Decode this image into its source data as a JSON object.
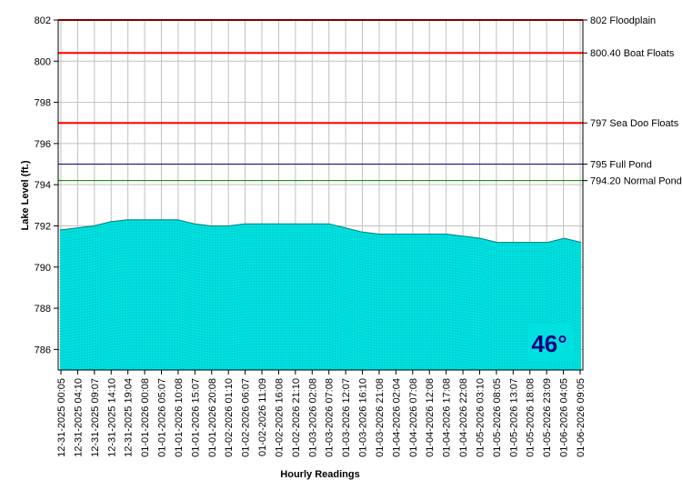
{
  "chart_data": {
    "type": "area",
    "xlabel": "Hourly Readings",
    "ylabel": "Lake Level (ft.)",
    "ylim": [
      785,
      802
    ],
    "y_ticks": [
      786,
      788,
      790,
      792,
      794,
      796,
      798,
      800,
      802
    ],
    "x_tick_labels": [
      "12-31-2025 00:05",
      "12-31-2025 04:10",
      "12-31-2025 09:07",
      "12-31-2025 14:10",
      "12-31-2025 19:04",
      "01-01-2026 00:08",
      "01-01-2026 05:07",
      "01-01-2026 10:08",
      "01-01-2026 15:07",
      "01-01-2026 20:08",
      "01-02-2026 01:10",
      "01-02-2026 06:07",
      "01-02-2026 11:09",
      "01-02-2026 16:08",
      "01-02-2026 21:10",
      "01-03-2026 02:08",
      "01-03-2026 07:08",
      "01-03-2026 12:07",
      "01-03-2026 16:10",
      "01-03-2026 21:08",
      "01-04-2026 02:04",
      "01-04-2026 07:08",
      "01-04-2026 12:08",
      "01-04-2026 17:08",
      "01-04-2026 22:08",
      "01-05-2026 03:10",
      "01-05-2026 08:05",
      "01-05-2026 13:07",
      "01-05-2026 18:08",
      "01-05-2026 23:09",
      "01-06-2026 04:05",
      "01-06-2026 09:05"
    ],
    "grid": true,
    "series": [
      {
        "color": "#00e0e0",
        "values": [
          791.8,
          791.9,
          792.0,
          792.2,
          792.3,
          792.3,
          792.3,
          792.3,
          792.1,
          792.0,
          792.0,
          792.1,
          792.1,
          792.1,
          792.1,
          792.1,
          792.1,
          791.9,
          791.7,
          791.6,
          791.6,
          791.6,
          791.6,
          791.6,
          791.5,
          791.4,
          791.2,
          791.2,
          791.2,
          791.2,
          791.4,
          791.2
        ]
      }
    ],
    "reference_lines": [
      {
        "value": 802,
        "label": "802 Floodplain",
        "color": "#ff0000"
      },
      {
        "value": 800.4,
        "label": "800.40 Boat Floats",
        "color": "#ff0000"
      },
      {
        "value": 797,
        "label": "797 Sea Doo Floats",
        "color": "#ff0000"
      },
      {
        "value": 795,
        "label": "795 Full Pond",
        "color": "#000080"
      },
      {
        "value": 794.2,
        "label": "794.20 Normal Pond",
        "color": "#008000"
      }
    ],
    "current_temperature": "46°",
    "temperature_color": "#000080"
  }
}
